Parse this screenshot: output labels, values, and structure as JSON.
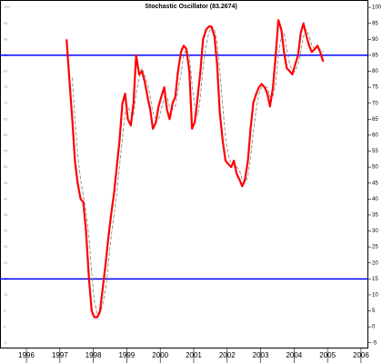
{
  "chart_data": {
    "type": "line",
    "title": "Stochastic Oscillator (83.2674)",
    "x": [
      1997.2,
      1997.28,
      1997.37,
      1997.45,
      1997.53,
      1997.62,
      1997.7,
      1997.78,
      1997.87,
      1997.95,
      1998.03,
      1998.12,
      1998.2,
      1998.28,
      1998.37,
      1998.45,
      1998.53,
      1998.62,
      1998.7,
      1998.78,
      1998.87,
      1998.95,
      1999.03,
      1999.12,
      1999.2,
      1999.28,
      1999.37,
      1999.45,
      1999.53,
      1999.62,
      1999.7,
      1999.78,
      1999.87,
      1999.95,
      2000.03,
      2000.12,
      2000.2,
      2000.28,
      2000.37,
      2000.45,
      2000.53,
      2000.62,
      2000.7,
      2000.78,
      2000.87,
      2000.95,
      2001.03,
      2001.12,
      2001.2,
      2001.28,
      2001.37,
      2001.45,
      2001.53,
      2001.62,
      2001.7,
      2001.78,
      2001.87,
      2001.95,
      2002.03,
      2002.12,
      2002.2,
      2002.28,
      2002.37,
      2002.45,
      2002.53,
      2002.62,
      2002.7,
      2002.78,
      2002.87,
      2002.95,
      2003.03,
      2003.12,
      2003.2,
      2003.28,
      2003.37,
      2003.45,
      2003.53,
      2003.62,
      2003.7,
      2003.78,
      2003.87,
      2003.95,
      2004.03,
      2004.12,
      2004.2,
      2004.28,
      2004.37,
      2004.45,
      2004.53,
      2004.62,
      2004.7,
      2004.78,
      2004.87
    ],
    "series": [
      {
        "color": "#ff0000",
        "width": 2.2,
        "dashed": false,
        "values": [
          90,
          78,
          65,
          52,
          45,
          40,
          39,
          30,
          15,
          5,
          3,
          3,
          5,
          12,
          20,
          28,
          35,
          42,
          50,
          58,
          70,
          73,
          65,
          63,
          70,
          85,
          79,
          80,
          77,
          72,
          68,
          62,
          64,
          69,
          72,
          75,
          68,
          65,
          70,
          72,
          80,
          86,
          88,
          87,
          80,
          62,
          64,
          72,
          80,
          90,
          93,
          94,
          94,
          91,
          82,
          67,
          58,
          52,
          51,
          50,
          52,
          48,
          46,
          44,
          46,
          52,
          62,
          70,
          73,
          75,
          76,
          75,
          73,
          69,
          75,
          85,
          96,
          93,
          86,
          81,
          80,
          79,
          82,
          85,
          92,
          95,
          91,
          88,
          86,
          87,
          88,
          86,
          83
        ]
      },
      {
        "color": "#808080",
        "width": 0.8,
        "dashed": true,
        "values": [
          null,
          null,
          78,
          65,
          54,
          46,
          41,
          36,
          28,
          17,
          8,
          4,
          4,
          7,
          12,
          20,
          28,
          35,
          42,
          50,
          59,
          67,
          69,
          67,
          66,
          73,
          78,
          81,
          79,
          76,
          72,
          67,
          65,
          65,
          68,
          72,
          72,
          69,
          68,
          69,
          74,
          79,
          85,
          87,
          85,
          76,
          69,
          66,
          72,
          81,
          88,
          92,
          94,
          93,
          89,
          80,
          69,
          59,
          54,
          51,
          51,
          50,
          49,
          46,
          45,
          47,
          53,
          61,
          68,
          73,
          75,
          75,
          75,
          72,
          72,
          76,
          85,
          91,
          92,
          87,
          82,
          80,
          80,
          82,
          86,
          91,
          93,
          91,
          88,
          87,
          87,
          87,
          86
        ]
      }
    ],
    "hlines": [
      {
        "value": 85,
        "color": "#0000ff"
      },
      {
        "value": 15,
        "color": "#0000ff"
      }
    ],
    "xlim": [
      1995.21,
      2006.22
    ],
    "xticks": [
      1996,
      1997,
      1998,
      1999,
      2000,
      2001,
      2002,
      2003,
      2004,
      2005,
      2006
    ],
    "ylim": [
      -6.5,
      102.3
    ],
    "yticks": [
      100,
      95,
      90,
      85,
      80,
      75,
      70,
      65,
      60,
      55,
      50,
      45,
      40,
      35,
      30,
      25,
      20,
      15,
      10,
      5,
      0,
      -5
    ]
  }
}
